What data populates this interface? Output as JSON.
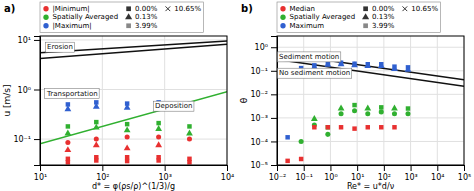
{
  "chart_data": [
    {
      "type": "scatter",
      "title": "a)",
      "x_label": "d* = φ(ρs/ρ)^(1/3)/g",
      "y_label": "u [m/s]",
      "log": true,
      "xlim": [
        10,
        10000
      ],
      "ylim": [
        0.03,
        12.0
      ],
      "xticks": [
        {
          "value": 10,
          "label": "10¹"
        },
        {
          "value": 100,
          "label": "10²"
        },
        {
          "value": 1000,
          "label": "10³"
        },
        {
          "value": 10000,
          "label": "10⁴"
        }
      ],
      "yticks": [
        {
          "value": 0.1,
          "label": "10⁻¹"
        },
        {
          "value": 1,
          "label": "10⁰"
        },
        {
          "value": 10,
          "label": "10¹"
        }
      ],
      "grid": true,
      "legend": "top",
      "legend_entries": [
        {
          "name": "|Minimum|",
          "color": "#e83030",
          "marker": "circle"
        },
        {
          "name": "Spatially Averaged",
          "color": "#30b030",
          "marker": "circle"
        },
        {
          "name": "|Maximum|",
          "color": "#3060d0",
          "marker": "circle"
        },
        {
          "name": "0.00%",
          "color": "#333333",
          "marker": "square"
        },
        {
          "name": "0.13%",
          "color": "#333333",
          "marker": "triangle"
        },
        {
          "name": "3.99%",
          "color": "#888888",
          "marker": "square"
        },
        {
          "name": "10.65%",
          "color": "#333333",
          "marker": "x"
        }
      ],
      "x": [
        28,
        80,
        250,
        800,
        2500
      ],
      "series": [
        {
          "type": "line",
          "color": "#111111",
          "x": [
            10,
            10000
          ],
          "values": [
            5.5,
            9.5
          ]
        },
        {
          "type": "line",
          "color": "#111111",
          "x": [
            10,
            10000
          ],
          "values": [
            4.2,
            8.2
          ]
        },
        {
          "type": "line",
          "color": "#30b030",
          "x": [
            10,
            10000
          ],
          "values": [
            0.08,
            0.9
          ]
        },
        {
          "type": "scatter",
          "color": "#3060d0",
          "marker": "square",
          "values": [
            0.5,
            0.55,
            0.52,
            0.55,
            0.52
          ]
        },
        {
          "type": "scatter",
          "color": "#3060d0",
          "marker": "triangle",
          "values": [
            0.4,
            0.45,
            0.43,
            0.45,
            0.42
          ]
        },
        {
          "type": "scatter",
          "color": "#30b030",
          "marker": "square",
          "values": [
            0.18,
            0.22,
            0.2,
            0.21,
            0.18
          ]
        },
        {
          "type": "scatter",
          "color": "#30b030",
          "marker": "triangle",
          "values": [
            0.13,
            0.17,
            0.15,
            0.16,
            0.13
          ]
        },
        {
          "type": "scatter",
          "color": "#e83030",
          "marker": "circle",
          "values": [
            0.085,
            0.1,
            0.11,
            0.11,
            0.1
          ]
        },
        {
          "type": "scatter",
          "color": "#e83030",
          "marker": "triangle",
          "values": [
            0.06,
            0.075,
            0.065,
            0.075,
            null
          ]
        },
        {
          "type": "scatter",
          "color": "#e83030",
          "marker": "square",
          "values": [
            0.04,
            0.043,
            0.043,
            0.043,
            0.04
          ]
        },
        {
          "type": "scatter",
          "color": "#e83030",
          "marker": "square",
          "values": [
            0.034,
            0.037,
            0.036,
            0.037,
            0.034
          ]
        }
      ],
      "annotations": [
        {
          "text": "Erosion",
          "x": 13,
          "y": 6.5
        },
        {
          "text": "Transportation",
          "x": 13,
          "y": 0.75
        },
        {
          "text": "Deposition",
          "x": 700,
          "y": 0.42
        }
      ]
    },
    {
      "type": "scatter",
      "title": "b)",
      "x_label": "Re* = u*d/ν",
      "y_label": "θ",
      "log": true,
      "xlim": [
        0.01,
        100000
      ],
      "ylim": [
        1e-05,
        3.0
      ],
      "xticks": [
        {
          "value": 0.01,
          "label": "10⁻²"
        },
        {
          "value": 0.1,
          "label": "10⁻¹"
        },
        {
          "value": 1,
          "label": "10⁰"
        },
        {
          "value": 10,
          "label": "10¹"
        },
        {
          "value": 100,
          "label": "10²"
        },
        {
          "value": 1000,
          "label": "10³"
        },
        {
          "value": 10000,
          "label": "10⁴"
        },
        {
          "value": 100000,
          "label": "10⁵"
        }
      ],
      "yticks": [
        {
          "value": 1e-05,
          "label": "10⁻⁵"
        },
        {
          "value": 0.0001,
          "label": "10⁻⁴"
        },
        {
          "value": 0.001,
          "label": "10⁻³"
        },
        {
          "value": 0.01,
          "label": "10⁻²"
        },
        {
          "value": 0.1,
          "label": "10⁻¹"
        },
        {
          "value": 1,
          "label": "10⁰"
        }
      ],
      "grid": true,
      "legend": "top",
      "legend_entries": [
        {
          "name": "Median",
          "color": "#e83030",
          "marker": "circle"
        },
        {
          "name": "Spatially Averaged",
          "color": "#30b030",
          "marker": "circle"
        },
        {
          "name": "Maximum",
          "color": "#3060d0",
          "marker": "circle"
        },
        {
          "name": "0.00%",
          "color": "#333333",
          "marker": "square"
        },
        {
          "name": "0.13%",
          "color": "#333333",
          "marker": "triangle"
        },
        {
          "name": "3.99%",
          "color": "#888888",
          "marker": "square"
        },
        {
          "name": "10.65%",
          "color": "#333333",
          "marker": "x"
        }
      ],
      "x": [
        0.025,
        0.08,
        0.25,
        0.8,
        2.5,
        8,
        25,
        80,
        250,
        800
      ],
      "series": [
        {
          "type": "line",
          "color": "#111111",
          "x": [
            0.01,
            100000
          ],
          "values": [
            0.55,
            0.042
          ]
        },
        {
          "type": "line",
          "color": "#111111",
          "x": [
            0.01,
            100000
          ],
          "values": [
            0.3,
            0.022
          ]
        },
        {
          "type": "scatter",
          "color": "#3060d0",
          "marker": "square",
          "values": [
            0.00015,
            0.13,
            0.17,
            0.22,
            0.22,
            0.2,
            0.19,
            0.19,
            0.15,
            0.14
          ]
        },
        {
          "type": "scatter",
          "color": "#3060d0",
          "marker": "triangle",
          "values": [
            null,
            0.1,
            0.14,
            0.18,
            0.19,
            0.17,
            0.16,
            0.16,
            0.12,
            0.11
          ]
        },
        {
          "type": "scatter",
          "color": "#30b030",
          "marker": "circle",
          "values": [
            null,
            0.0001,
            null,
            null,
            null,
            null,
            null,
            null,
            null,
            null
          ]
        },
        {
          "type": "scatter",
          "color": "#30b030",
          "marker": "triangle",
          "values": [
            null,
            null,
            0.0009,
            null,
            0.0025,
            null,
            0.0025,
            null,
            0.0025,
            null
          ]
        },
        {
          "type": "scatter",
          "color": "#30b030",
          "marker": "square",
          "values": [
            null,
            null,
            null,
            0.0004,
            null,
            0.0035,
            null,
            0.0028,
            null,
            0.0025
          ]
        },
        {
          "type": "scatter",
          "color": "#30b030",
          "marker": "circle",
          "values": [
            null,
            null,
            0.0005,
            0.0002,
            0.0015,
            0.002,
            0.0015,
            0.0018,
            0.0015,
            0.0015
          ]
        },
        {
          "type": "scatter",
          "color": "#e83030",
          "marker": "square",
          "values": [
            1.5e-05,
            1.8e-05,
            0.0004,
            0.0004,
            0.0004,
            0.00035,
            0.0004,
            0.0004,
            0.0004,
            null
          ]
        }
      ],
      "annotations": [
        {
          "text": "Sediment motion",
          "x": 0.012,
          "y": 0.32
        },
        {
          "text": "No sediment motion",
          "x": 0.012,
          "y": 0.065
        }
      ]
    }
  ]
}
